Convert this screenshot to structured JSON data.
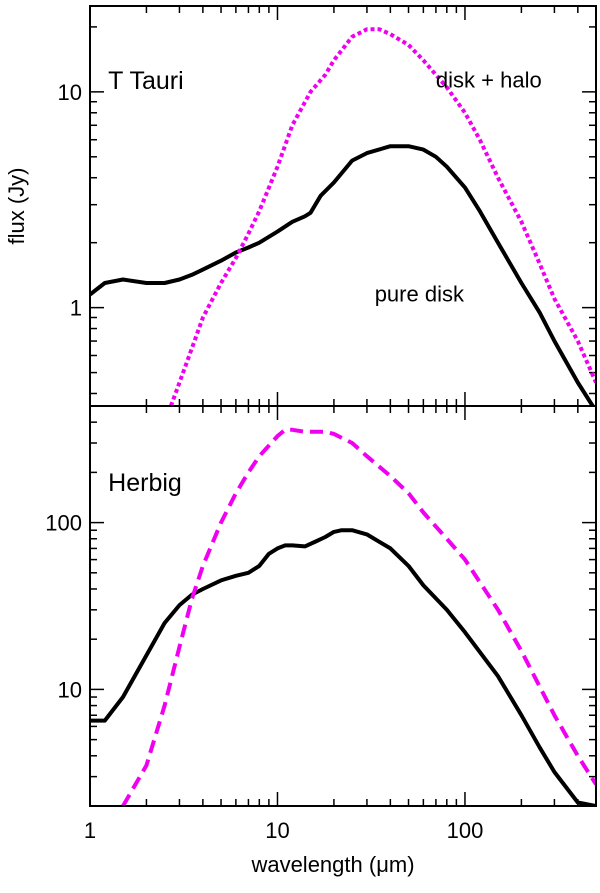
{
  "chart_data": [
    {
      "type": "line",
      "panel": "top",
      "xscale": "log",
      "yscale": "log",
      "xlim": [
        1,
        500
      ],
      "ylim": [
        0.35,
        25
      ],
      "ylabel": "flux (Jy)",
      "yticks": [
        {
          "value": 1,
          "label": "1"
        },
        {
          "value": 10,
          "label": "10"
        }
      ],
      "annotations": [
        {
          "text": "T Tauri",
          "x": 1.25,
          "y": 10.3
        },
        {
          "text": "disk + halo",
          "x": 70,
          "y": 10.5,
          "color": "#f000f0"
        },
        {
          "text": "pure disk",
          "x": 33,
          "y": 1.07
        }
      ],
      "series": [
        {
          "name": "pure disk",
          "color": "#000000",
          "dash": "solid",
          "x": [
            1,
            1.2,
            1.5,
            2,
            2.5,
            3,
            3.5,
            4,
            5,
            6,
            7,
            8,
            10,
            12,
            14,
            15,
            17,
            20,
            25,
            30,
            40,
            50,
            60,
            70,
            80,
            100,
            120,
            150,
            200,
            250,
            300,
            400,
            480
          ],
          "y": [
            1.15,
            1.3,
            1.35,
            1.3,
            1.3,
            1.35,
            1.42,
            1.5,
            1.65,
            1.8,
            1.9,
            2.0,
            2.25,
            2.5,
            2.65,
            2.75,
            3.3,
            3.8,
            4.8,
            5.2,
            5.6,
            5.6,
            5.4,
            5.0,
            4.5,
            3.6,
            2.8,
            2.0,
            1.3,
            0.95,
            0.7,
            0.45,
            0.35
          ]
        },
        {
          "name": "disk + halo",
          "color": "#f000f0",
          "dash": "dotted",
          "x": [
            2.7,
            3,
            3.5,
            4,
            5,
            6,
            7,
            8,
            10,
            12,
            15,
            18,
            20,
            25,
            30,
            35,
            40,
            50,
            60,
            70,
            80,
            100,
            120,
            150,
            200,
            250,
            300,
            400,
            500
          ],
          "y": [
            0.35,
            0.45,
            0.65,
            0.9,
            1.3,
            1.7,
            2.2,
            2.8,
            4.5,
            7.0,
            10.0,
            12.0,
            14.0,
            18.0,
            19.5,
            19.5,
            18.5,
            16.5,
            14.0,
            12.0,
            10.5,
            8.0,
            6.0,
            4.0,
            2.5,
            1.6,
            1.1,
            0.7,
            0.45
          ]
        }
      ]
    },
    {
      "type": "line",
      "panel": "bottom",
      "xscale": "log",
      "yscale": "log",
      "xlim": [
        1,
        500
      ],
      "ylim": [
        2,
        500
      ],
      "xlabel": "wavelength (μm)",
      "xticks": [
        {
          "value": 1,
          "label": "1"
        },
        {
          "value": 10,
          "label": "10"
        },
        {
          "value": 100,
          "label": "100"
        }
      ],
      "yticks": [
        {
          "value": 10,
          "label": "10"
        },
        {
          "value": 100,
          "label": "100"
        }
      ],
      "annotations": [
        {
          "text": "Herbig",
          "x": 1.25,
          "y": 155
        }
      ],
      "series": [
        {
          "name": "pure disk",
          "color": "#000000",
          "dash": "solid",
          "x": [
            1,
            1.2,
            1.5,
            2,
            2.5,
            3,
            3.5,
            4,
            5,
            6,
            7,
            8,
            9,
            10,
            11,
            12,
            14,
            16,
            18,
            20,
            22,
            25,
            30,
            40,
            50,
            60,
            80,
            100,
            150,
            200,
            250,
            300,
            400,
            500
          ],
          "y": [
            6.5,
            6.5,
            9,
            16,
            25,
            32,
            37,
            40,
            45,
            48,
            50,
            55,
            65,
            70,
            73,
            73,
            72,
            77,
            82,
            88,
            90,
            90,
            85,
            70,
            55,
            42,
            30,
            22,
            12,
            7,
            4.5,
            3.2,
            2.1,
            2
          ]
        },
        {
          "name": "disk + halo",
          "color": "#f000f0",
          "dash": "dashed",
          "x": [
            1.5,
            2,
            2.5,
            3,
            3.5,
            4,
            5,
            6,
            7,
            8,
            10,
            11,
            12,
            14,
            16,
            18,
            20,
            25,
            30,
            40,
            50,
            60,
            80,
            100,
            150,
            200,
            300,
            400,
            500
          ],
          "y": [
            2,
            3.5,
            8,
            18,
            35,
            55,
            100,
            150,
            200,
            250,
            330,
            360,
            360,
            350,
            350,
            350,
            340,
            300,
            250,
            190,
            150,
            115,
            80,
            60,
            30,
            17,
            7,
            4,
            2.7
          ]
        }
      ]
    }
  ]
}
